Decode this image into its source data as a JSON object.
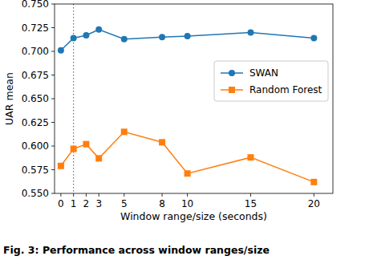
{
  "chart_data": {
    "type": "line",
    "caption": "Fig. 3: Performance across window ranges/size",
    "x_label": "Window range/size (seconds)",
    "y_label": "UAR mean",
    "x": [
      0,
      1,
      2,
      3,
      5,
      8,
      10,
      15,
      20
    ],
    "series": [
      {
        "name": "SWAN",
        "color": "#1f77b4",
        "marker": "circle",
        "line_style": "solid",
        "values": [
          0.701,
          0.714,
          0.717,
          0.723,
          0.713,
          0.715,
          0.716,
          0.72,
          0.714
        ]
      },
      {
        "name": "Random Forest",
        "color": "#ff7f0e",
        "marker": "square",
        "line_style": "solid",
        "values": [
          0.579,
          0.597,
          0.602,
          0.587,
          0.615,
          0.604,
          0.571,
          0.588,
          0.562
        ]
      }
    ],
    "xlim": [
      -0.5,
      21.5
    ],
    "xticks": [
      0,
      1,
      2,
      3,
      5,
      8,
      10,
      15,
      20
    ],
    "ylim": [
      0.55,
      0.75
    ],
    "yticks": [
      {
        "value": 0.55,
        "label": "0.550"
      },
      {
        "value": 0.575,
        "label": "0.575"
      },
      {
        "value": 0.6,
        "label": "0.600"
      },
      {
        "value": 0.625,
        "label": "0.625"
      },
      {
        "value": 0.65,
        "label": "0.650"
      },
      {
        "value": 0.675,
        "label": "0.675"
      },
      {
        "value": 0.7,
        "label": "0.700"
      },
      {
        "value": 0.725,
        "label": "0.725"
      },
      {
        "value": 0.75,
        "label": "0.750"
      }
    ],
    "annotations": [
      {
        "x": 1,
        "line_style": "dotted"
      }
    ],
    "grid": false,
    "legend": "center right"
  }
}
